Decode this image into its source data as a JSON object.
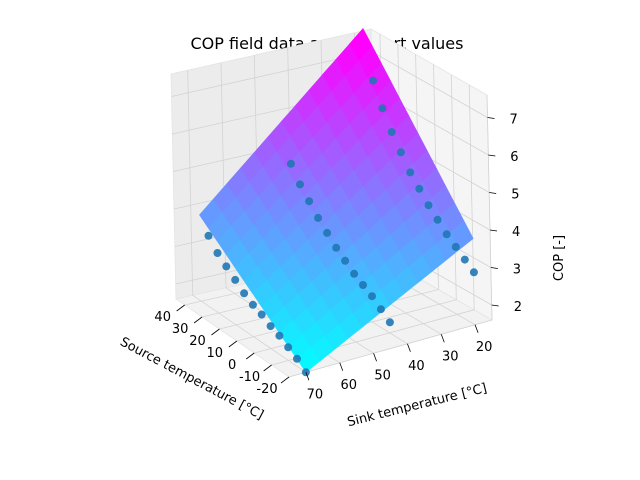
{
  "chart_data": {
    "type": "surface3d",
    "title": "COP field data and support values",
    "xlabel": "Source temperature [°C]",
    "ylabel": "Sink temperature [°C]",
    "zlabel": "COP [-]",
    "xlim": [
      -20,
      45
    ],
    "ylim": [
      15,
      75
    ],
    "zlim": [
      1.6,
      7.6
    ],
    "x_ticks": [
      -20,
      -10,
      0,
      10,
      20,
      30,
      40
    ],
    "y_ticks": [
      20,
      30,
      40,
      50,
      60,
      70
    ],
    "z_ticks": [
      2,
      3,
      4,
      5,
      6,
      7
    ],
    "colormap": "cool",
    "grid": true,
    "surface": {
      "x_range": [
        -20,
        40
      ],
      "y_range": [
        20,
        70
      ],
      "corners": [
        {
          "x": -20,
          "y": 70,
          "cop": 1.6
        },
        {
          "x": -20,
          "y": 20,
          "cop": 3.9
        },
        {
          "x": 40,
          "y": 70,
          "cop": 3.9
        },
        {
          "x": 40,
          "y": 20,
          "cop": 7.5
        }
      ]
    },
    "support_points": {
      "color": "#1f77b4",
      "points": [
        {
          "x": -20,
          "y": 70,
          "cop": 1.6
        },
        {
          "x": -15,
          "y": 70,
          "cop": 1.8
        },
        {
          "x": -10,
          "y": 70,
          "cop": 1.95
        },
        {
          "x": -5,
          "y": 70,
          "cop": 2.1
        },
        {
          "x": 0,
          "y": 70,
          "cop": 2.2
        },
        {
          "x": 5,
          "y": 70,
          "cop": 2.35
        },
        {
          "x": 10,
          "y": 70,
          "cop": 2.45
        },
        {
          "x": 15,
          "y": 70,
          "cop": 2.6
        },
        {
          "x": 20,
          "y": 70,
          "cop": 2.8
        },
        {
          "x": 25,
          "y": 70,
          "cop": 3.0
        },
        {
          "x": 30,
          "y": 70,
          "cop": 3.2
        },
        {
          "x": 35,
          "y": 70,
          "cop": 3.5
        },
        {
          "x": -20,
          "y": 45,
          "cop": 2.3
        },
        {
          "x": -15,
          "y": 45,
          "cop": 2.5
        },
        {
          "x": -10,
          "y": 45,
          "cop": 2.7
        },
        {
          "x": -5,
          "y": 45,
          "cop": 2.85
        },
        {
          "x": 0,
          "y": 45,
          "cop": 3.0
        },
        {
          "x": 5,
          "y": 45,
          "cop": 3.2
        },
        {
          "x": 10,
          "y": 45,
          "cop": 3.4
        },
        {
          "x": 15,
          "y": 45,
          "cop": 3.65
        },
        {
          "x": 20,
          "y": 45,
          "cop": 3.9
        },
        {
          "x": 25,
          "y": 45,
          "cop": 4.2
        },
        {
          "x": 30,
          "y": 45,
          "cop": 4.5
        },
        {
          "x": 35,
          "y": 45,
          "cop": 4.9
        },
        {
          "x": -20,
          "y": 20,
          "cop": 3.0
        },
        {
          "x": -15,
          "y": 20,
          "cop": 3.2
        },
        {
          "x": -10,
          "y": 20,
          "cop": 3.4
        },
        {
          "x": -5,
          "y": 20,
          "cop": 3.6
        },
        {
          "x": 0,
          "y": 20,
          "cop": 3.85
        },
        {
          "x": 5,
          "y": 20,
          "cop": 4.1
        },
        {
          "x": 10,
          "y": 20,
          "cop": 4.4
        },
        {
          "x": 15,
          "y": 20,
          "cop": 4.7
        },
        {
          "x": 20,
          "y": 20,
          "cop": 5.1
        },
        {
          "x": 25,
          "y": 20,
          "cop": 5.5
        },
        {
          "x": 30,
          "y": 20,
          "cop": 6.0
        },
        {
          "x": 35,
          "y": 20,
          "cop": 6.6
        }
      ]
    }
  }
}
